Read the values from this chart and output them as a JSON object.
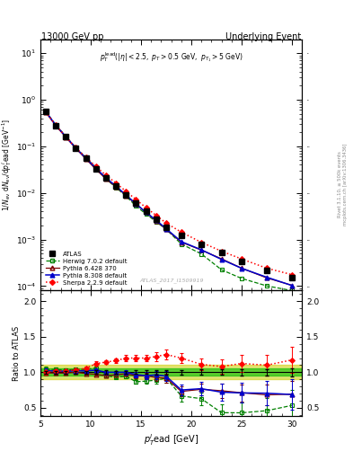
{
  "title_left": "13000 GeV pp",
  "title_right": "Underlying Event",
  "watermark": "ATLAS_2017_I1509919",
  "right_label1": "Rivet 3.1.10, ≥ 500k events",
  "right_label2": "mcplots.cern.ch [arXiv:1306.3436]",
  "atlas_x": [
    5.5,
    6.5,
    7.5,
    8.5,
    9.5,
    10.5,
    11.5,
    12.5,
    13.5,
    14.5,
    15.5,
    16.5,
    17.5,
    19.0,
    21.0,
    23.0,
    25.0,
    27.5,
    30.0
  ],
  "atlas_y": [
    0.55,
    0.28,
    0.16,
    0.09,
    0.055,
    0.033,
    0.021,
    0.014,
    0.009,
    0.006,
    0.004,
    0.0027,
    0.0018,
    0.0012,
    0.00078,
    0.00052,
    0.00034,
    0.00022,
    0.00015
  ],
  "atlas_yerr": [
    0.012,
    0.006,
    0.003,
    0.002,
    0.001,
    0.0008,
    0.0005,
    0.0003,
    0.0002,
    0.00015,
    0.0001,
    8e-05,
    6e-05,
    4e-05,
    3e-05,
    2e-05,
    1.5e-05,
    1e-05,
    8e-06
  ],
  "herwig_x": [
    5.5,
    6.5,
    7.5,
    8.5,
    9.5,
    10.5,
    11.5,
    12.5,
    13.5,
    14.5,
    15.5,
    16.5,
    17.5,
    19.0,
    21.0,
    23.0,
    25.0,
    27.5,
    30.0
  ],
  "herwig_y": [
    0.57,
    0.29,
    0.165,
    0.094,
    0.057,
    0.035,
    0.02,
    0.013,
    0.0085,
    0.0052,
    0.0035,
    0.0024,
    0.00165,
    0.0008,
    0.00049,
    0.000224,
    0.000146,
    0.000101,
    8e-05
  ],
  "pythia6_x": [
    5.5,
    6.5,
    7.5,
    8.5,
    9.5,
    10.5,
    11.5,
    12.5,
    13.5,
    14.5,
    15.5,
    16.5,
    17.5,
    19.0,
    21.0,
    23.0,
    25.0,
    27.5,
    30.0
  ],
  "pythia6_y": [
    0.545,
    0.277,
    0.158,
    0.09,
    0.054,
    0.032,
    0.02,
    0.0135,
    0.0088,
    0.0057,
    0.0038,
    0.0025,
    0.00165,
    0.000876,
    0.000593,
    0.000385,
    0.000242,
    0.00015,
    0.000104
  ],
  "pythia8_x": [
    5.5,
    6.5,
    7.5,
    8.5,
    9.5,
    10.5,
    11.5,
    12.5,
    13.5,
    14.5,
    15.5,
    16.5,
    17.5,
    19.0,
    21.0,
    23.0,
    25.0,
    27.5,
    30.0
  ],
  "pythia8_y": [
    0.561,
    0.285,
    0.162,
    0.092,
    0.056,
    0.034,
    0.021,
    0.014,
    0.009,
    0.0058,
    0.0038,
    0.0026,
    0.0017,
    0.0009,
    0.0006,
    0.000374,
    0.000241,
    0.000155,
    0.000103
  ],
  "sherpa_x": [
    5.5,
    6.5,
    7.5,
    8.5,
    9.5,
    10.5,
    11.5,
    12.5,
    13.5,
    14.5,
    15.5,
    16.5,
    17.5,
    19.0,
    21.0,
    23.0,
    25.0,
    27.5,
    30.0
  ],
  "sherpa_y": [
    0.55,
    0.285,
    0.163,
    0.093,
    0.058,
    0.037,
    0.024,
    0.0163,
    0.0108,
    0.0072,
    0.0048,
    0.0033,
    0.00225,
    0.00144,
    0.000867,
    0.000562,
    0.000382,
    0.000242,
    0.000176
  ],
  "atlas_color": "#000000",
  "herwig_color": "#008000",
  "pythia6_color": "#800000",
  "pythia8_color": "#0000cc",
  "sherpa_color": "#ff0000",
  "band_inner_color": "#00bb00",
  "band_outer_color": "#cccc00",
  "xlim": [
    5,
    31
  ],
  "ylim_main": [
    8e-05,
    20
  ],
  "ylim_ratio": [
    0.38,
    2.15
  ],
  "ratio_yticks": [
    0.5,
    1.0,
    1.5,
    2.0
  ],
  "herwig_ratio": [
    1.04,
    1.04,
    1.03,
    1.04,
    1.04,
    1.06,
    0.95,
    0.93,
    0.944,
    0.867,
    0.875,
    0.889,
    0.917,
    0.667,
    0.628,
    0.431,
    0.429,
    0.459,
    0.533
  ],
  "herwig_rerr": [
    0.04,
    0.03,
    0.02,
    0.02,
    0.02,
    0.02,
    0.02,
    0.02,
    0.03,
    0.03,
    0.04,
    0.05,
    0.06,
    0.08,
    0.09,
    0.12,
    0.15,
    0.18,
    0.22
  ],
  "pythia6_ratio": [
    0.991,
    0.989,
    0.988,
    1.0,
    0.982,
    0.97,
    0.952,
    0.964,
    0.978,
    0.95,
    0.95,
    0.926,
    0.917,
    0.73,
    0.76,
    0.74,
    0.712,
    0.682,
    0.693
  ],
  "pythia6_rerr": [
    0.03,
    0.02,
    0.02,
    0.02,
    0.02,
    0.02,
    0.02,
    0.02,
    0.03,
    0.03,
    0.04,
    0.05,
    0.06,
    0.07,
    0.08,
    0.1,
    0.12,
    0.15,
    0.18
  ],
  "pythia8_ratio": [
    1.02,
    1.018,
    1.013,
    1.022,
    1.018,
    1.03,
    1.0,
    1.0,
    1.0,
    0.967,
    0.95,
    0.963,
    0.944,
    0.75,
    0.769,
    0.72,
    0.709,
    0.705,
    0.687
  ],
  "pythia8_rerr": [
    0.03,
    0.02,
    0.02,
    0.02,
    0.02,
    0.02,
    0.02,
    0.02,
    0.03,
    0.04,
    0.05,
    0.06,
    0.07,
    0.08,
    0.09,
    0.12,
    0.14,
    0.17,
    0.21
  ],
  "sherpa_ratio": [
    1.0,
    1.018,
    1.019,
    1.033,
    1.055,
    1.121,
    1.143,
    1.164,
    1.2,
    1.2,
    1.2,
    1.222,
    1.25,
    1.2,
    1.111,
    1.081,
    1.124,
    1.1,
    1.173
  ],
  "sherpa_rerr": [
    0.03,
    0.02,
    0.02,
    0.02,
    0.02,
    0.03,
    0.03,
    0.03,
    0.04,
    0.04,
    0.05,
    0.06,
    0.07,
    0.07,
    0.08,
    0.1,
    0.12,
    0.15,
    0.18
  ]
}
